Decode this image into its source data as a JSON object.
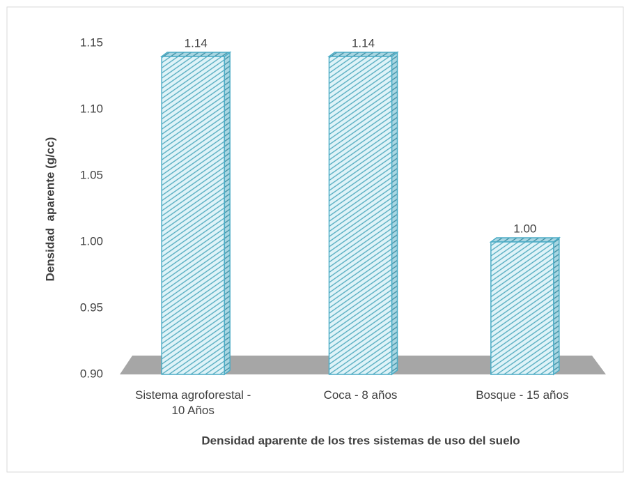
{
  "chart_data": {
    "type": "bar3d",
    "categories": [
      "Sistema agroforestal - 10 Años",
      "Coca - 8 años",
      "Bosque - 15 años"
    ],
    "values": [
      1.14,
      1.14,
      1.0
    ],
    "value_labels": [
      "1.14",
      "1.14",
      "1.00"
    ],
    "color": "#4bacc6",
    "ylim": [
      0.9,
      1.15
    ],
    "yticks": [
      {
        "value": 0.9,
        "label": "0.90"
      },
      0.95,
      {
        "value": 1.0,
        "label": "1.00"
      },
      1.05,
      {
        "value": 1.1,
        "label": "1.10"
      },
      1.15
    ],
    "ylabel": "Densidad  aparente (g/cc)",
    "xlabel": "Densidad aparente de los tres sistemas de uso del suelo",
    "grid": false
  }
}
